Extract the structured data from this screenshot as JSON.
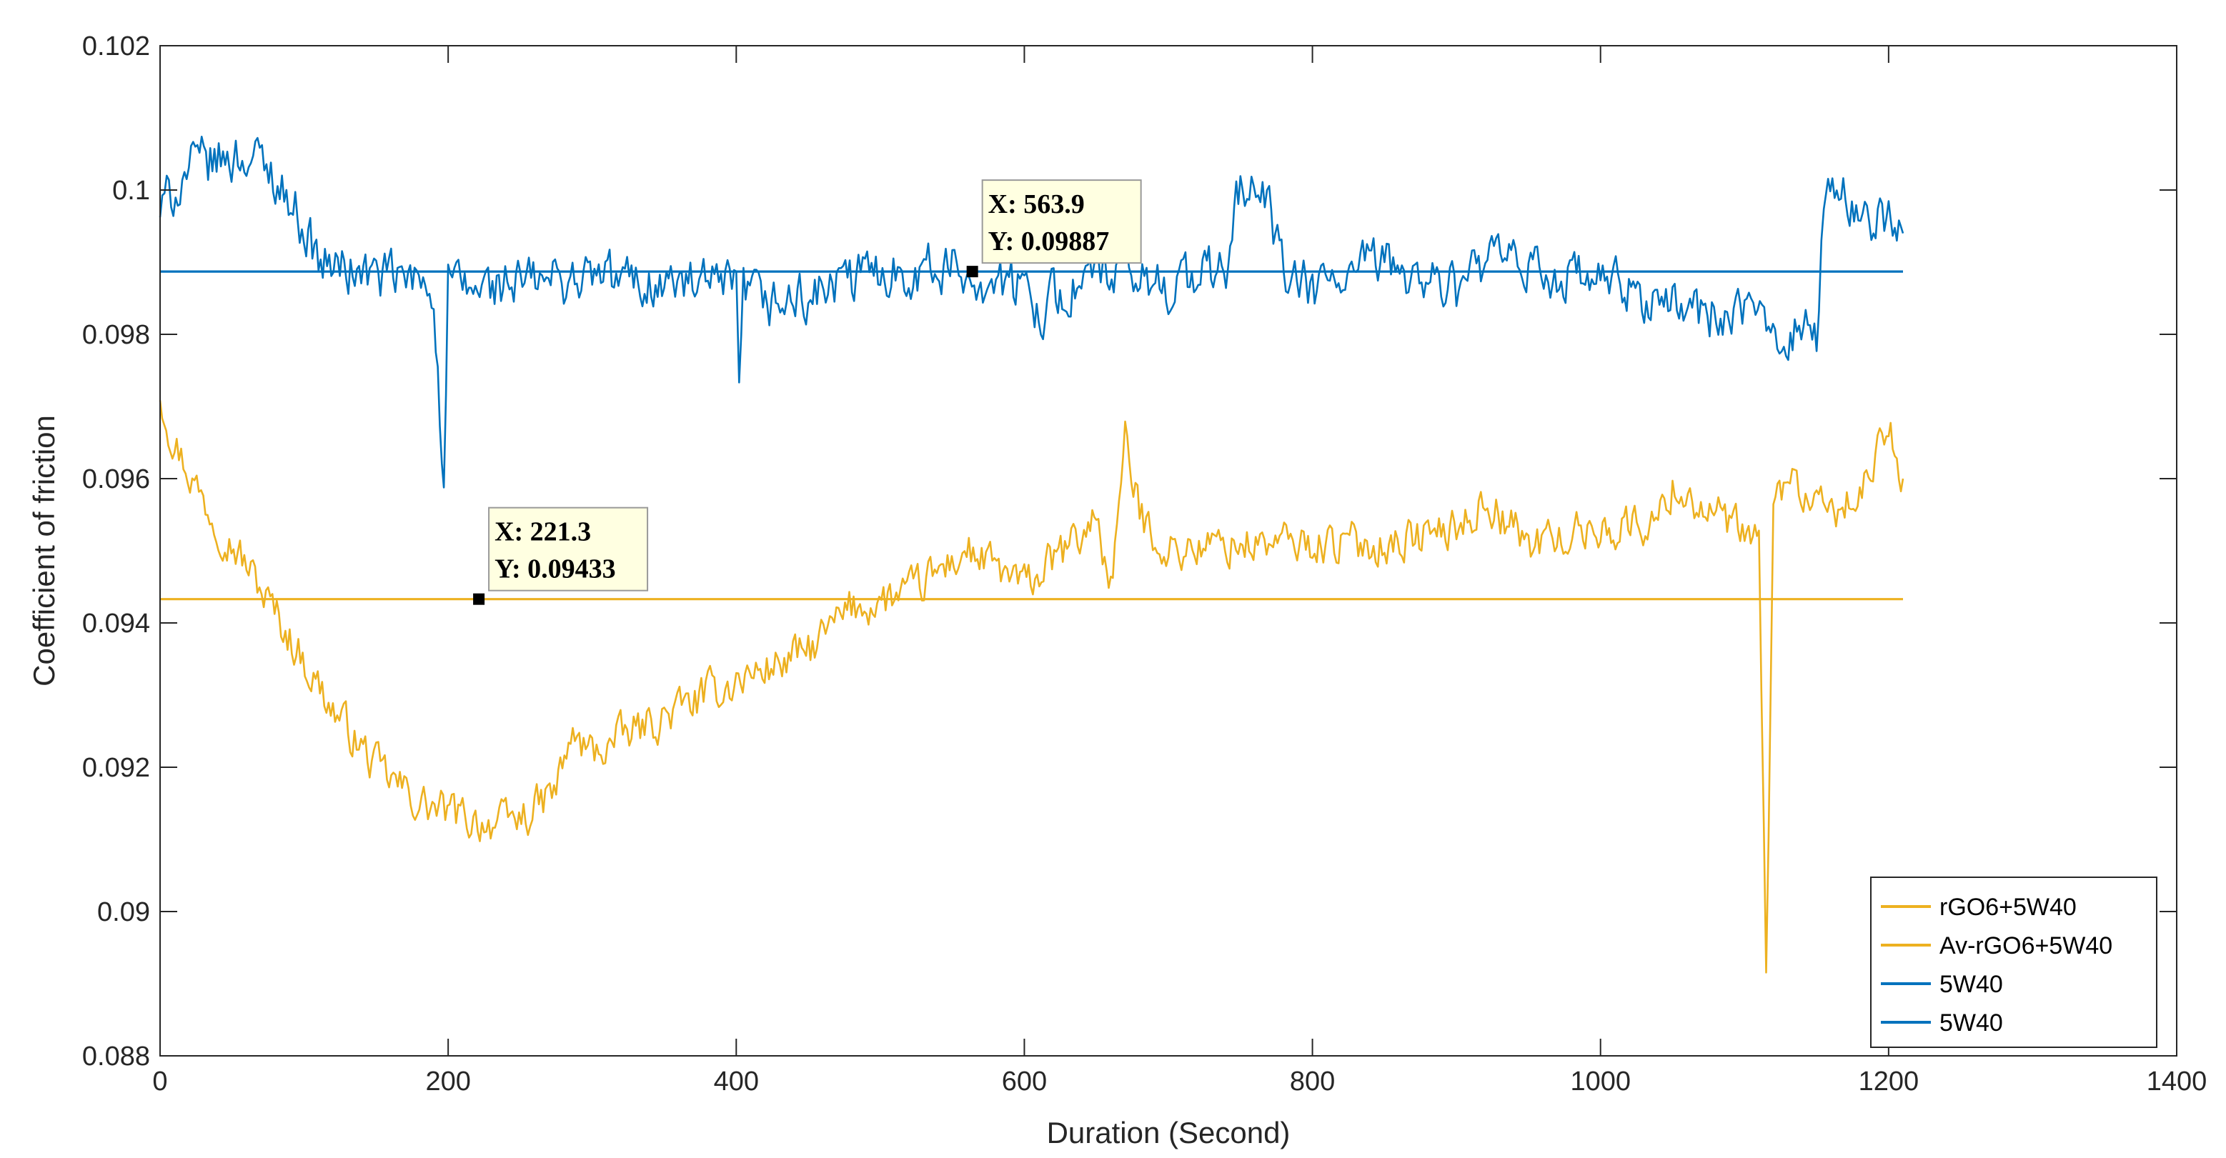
{
  "chart_data": {
    "type": "line",
    "title": "",
    "xlabel": "Duration (Second)",
    "ylabel": "Coefficient of friction",
    "xlim": [
      0,
      1400
    ],
    "ylim": [
      0.088,
      0.102
    ],
    "x_ticks": [
      0,
      200,
      400,
      600,
      800,
      1000,
      1200,
      1400
    ],
    "x_tick_labels": [
      "0",
      "200",
      "400",
      "600",
      "800",
      "1000",
      "1200",
      "1400"
    ],
    "y_ticks": [
      0.088,
      0.09,
      0.092,
      0.094,
      0.096,
      0.098,
      0.1,
      0.102
    ],
    "y_tick_labels": [
      "0.088",
      "0.09",
      "0.092",
      "0.094",
      "0.096",
      "0.098",
      "0.1",
      "0.102"
    ],
    "grid": false,
    "legend_position": "bottom-right",
    "series": [
      {
        "name": "rGO6+5W40",
        "color": "#EDB120",
        "noise": 0.00028,
        "x": [
          0,
          10,
          30,
          60,
          90,
          120,
          150,
          180,
          210,
          240,
          260,
          275,
          285,
          300,
          350,
          400,
          450,
          480,
          520,
          560,
          600,
          640,
          650,
          660,
          670,
          680,
          700,
          750,
          800,
          850,
          900,
          920,
          950,
          1000,
          1040,
          1050,
          1100,
          1110,
          1115,
          1120,
          1130,
          1150,
          1180,
          1200,
          1210
        ],
        "y": [
          0.0972,
          0.0965,
          0.0957,
          0.0948,
          0.0938,
          0.0928,
          0.092,
          0.0915,
          0.0913,
          0.0912,
          0.0914,
          0.0917,
          0.0924,
          0.0922,
          0.0927,
          0.0932,
          0.0936,
          0.0942,
          0.0944,
          0.095,
          0.0945,
          0.0952,
          0.0955,
          0.0945,
          0.0965,
          0.0955,
          0.095,
          0.0951,
          0.0951,
          0.0951,
          0.0953,
          0.0957,
          0.0951,
          0.0953,
          0.0954,
          0.0959,
          0.0952,
          0.0951,
          0.089,
          0.0955,
          0.0961,
          0.0955,
          0.0957,
          0.0967,
          0.096
        ]
      },
      {
        "name": "Av-rGO6+5W40",
        "color": "#EDB120",
        "x": [
          0,
          1210
        ],
        "y": [
          0.09433,
          0.09433
        ]
      },
      {
        "name": "5W40",
        "color": "#0072BD",
        "noise": 0.00035,
        "x": [
          0,
          20,
          60,
          80,
          100,
          110,
          150,
          190,
          197,
          200,
          210,
          250,
          300,
          350,
          400,
          402,
          405,
          420,
          450,
          500,
          550,
          600,
          610,
          650,
          700,
          740,
          750,
          770,
          780,
          800,
          850,
          900,
          920,
          950,
          1000,
          1050,
          1100,
          1150,
          1155,
          1170,
          1200,
          1210
        ],
        "y": [
          0.0997,
          0.1003,
          0.1005,
          0.1002,
          0.0995,
          0.099,
          0.0988,
          0.0987,
          0.0957,
          0.0987,
          0.0986,
          0.0987,
          0.0988,
          0.0987,
          0.0986,
          0.097,
          0.0986,
          0.0984,
          0.0985,
          0.0989,
          0.0989,
          0.0986,
          0.0984,
          0.0988,
          0.0987,
          0.0989,
          0.1001,
          0.0998,
          0.0988,
          0.0986,
          0.099,
          0.0986,
          0.099,
          0.0989,
          0.0987,
          0.0984,
          0.0982,
          0.098,
          0.0998,
          0.0999,
          0.0995,
          0.0994
        ]
      },
      {
        "name": "5W40",
        "color": "#0072BD",
        "x": [
          0,
          1210
        ],
        "y": [
          0.09887,
          0.09887
        ]
      }
    ],
    "annotations": [
      {
        "x": 221.3,
        "y": 0.09433,
        "label_x": "X: 221.3",
        "label_y": "Y: 0.09433"
      },
      {
        "x": 563.9,
        "y": 0.09887,
        "label_x": "X: 563.9",
        "label_y": "Y: 0.09887"
      }
    ]
  }
}
